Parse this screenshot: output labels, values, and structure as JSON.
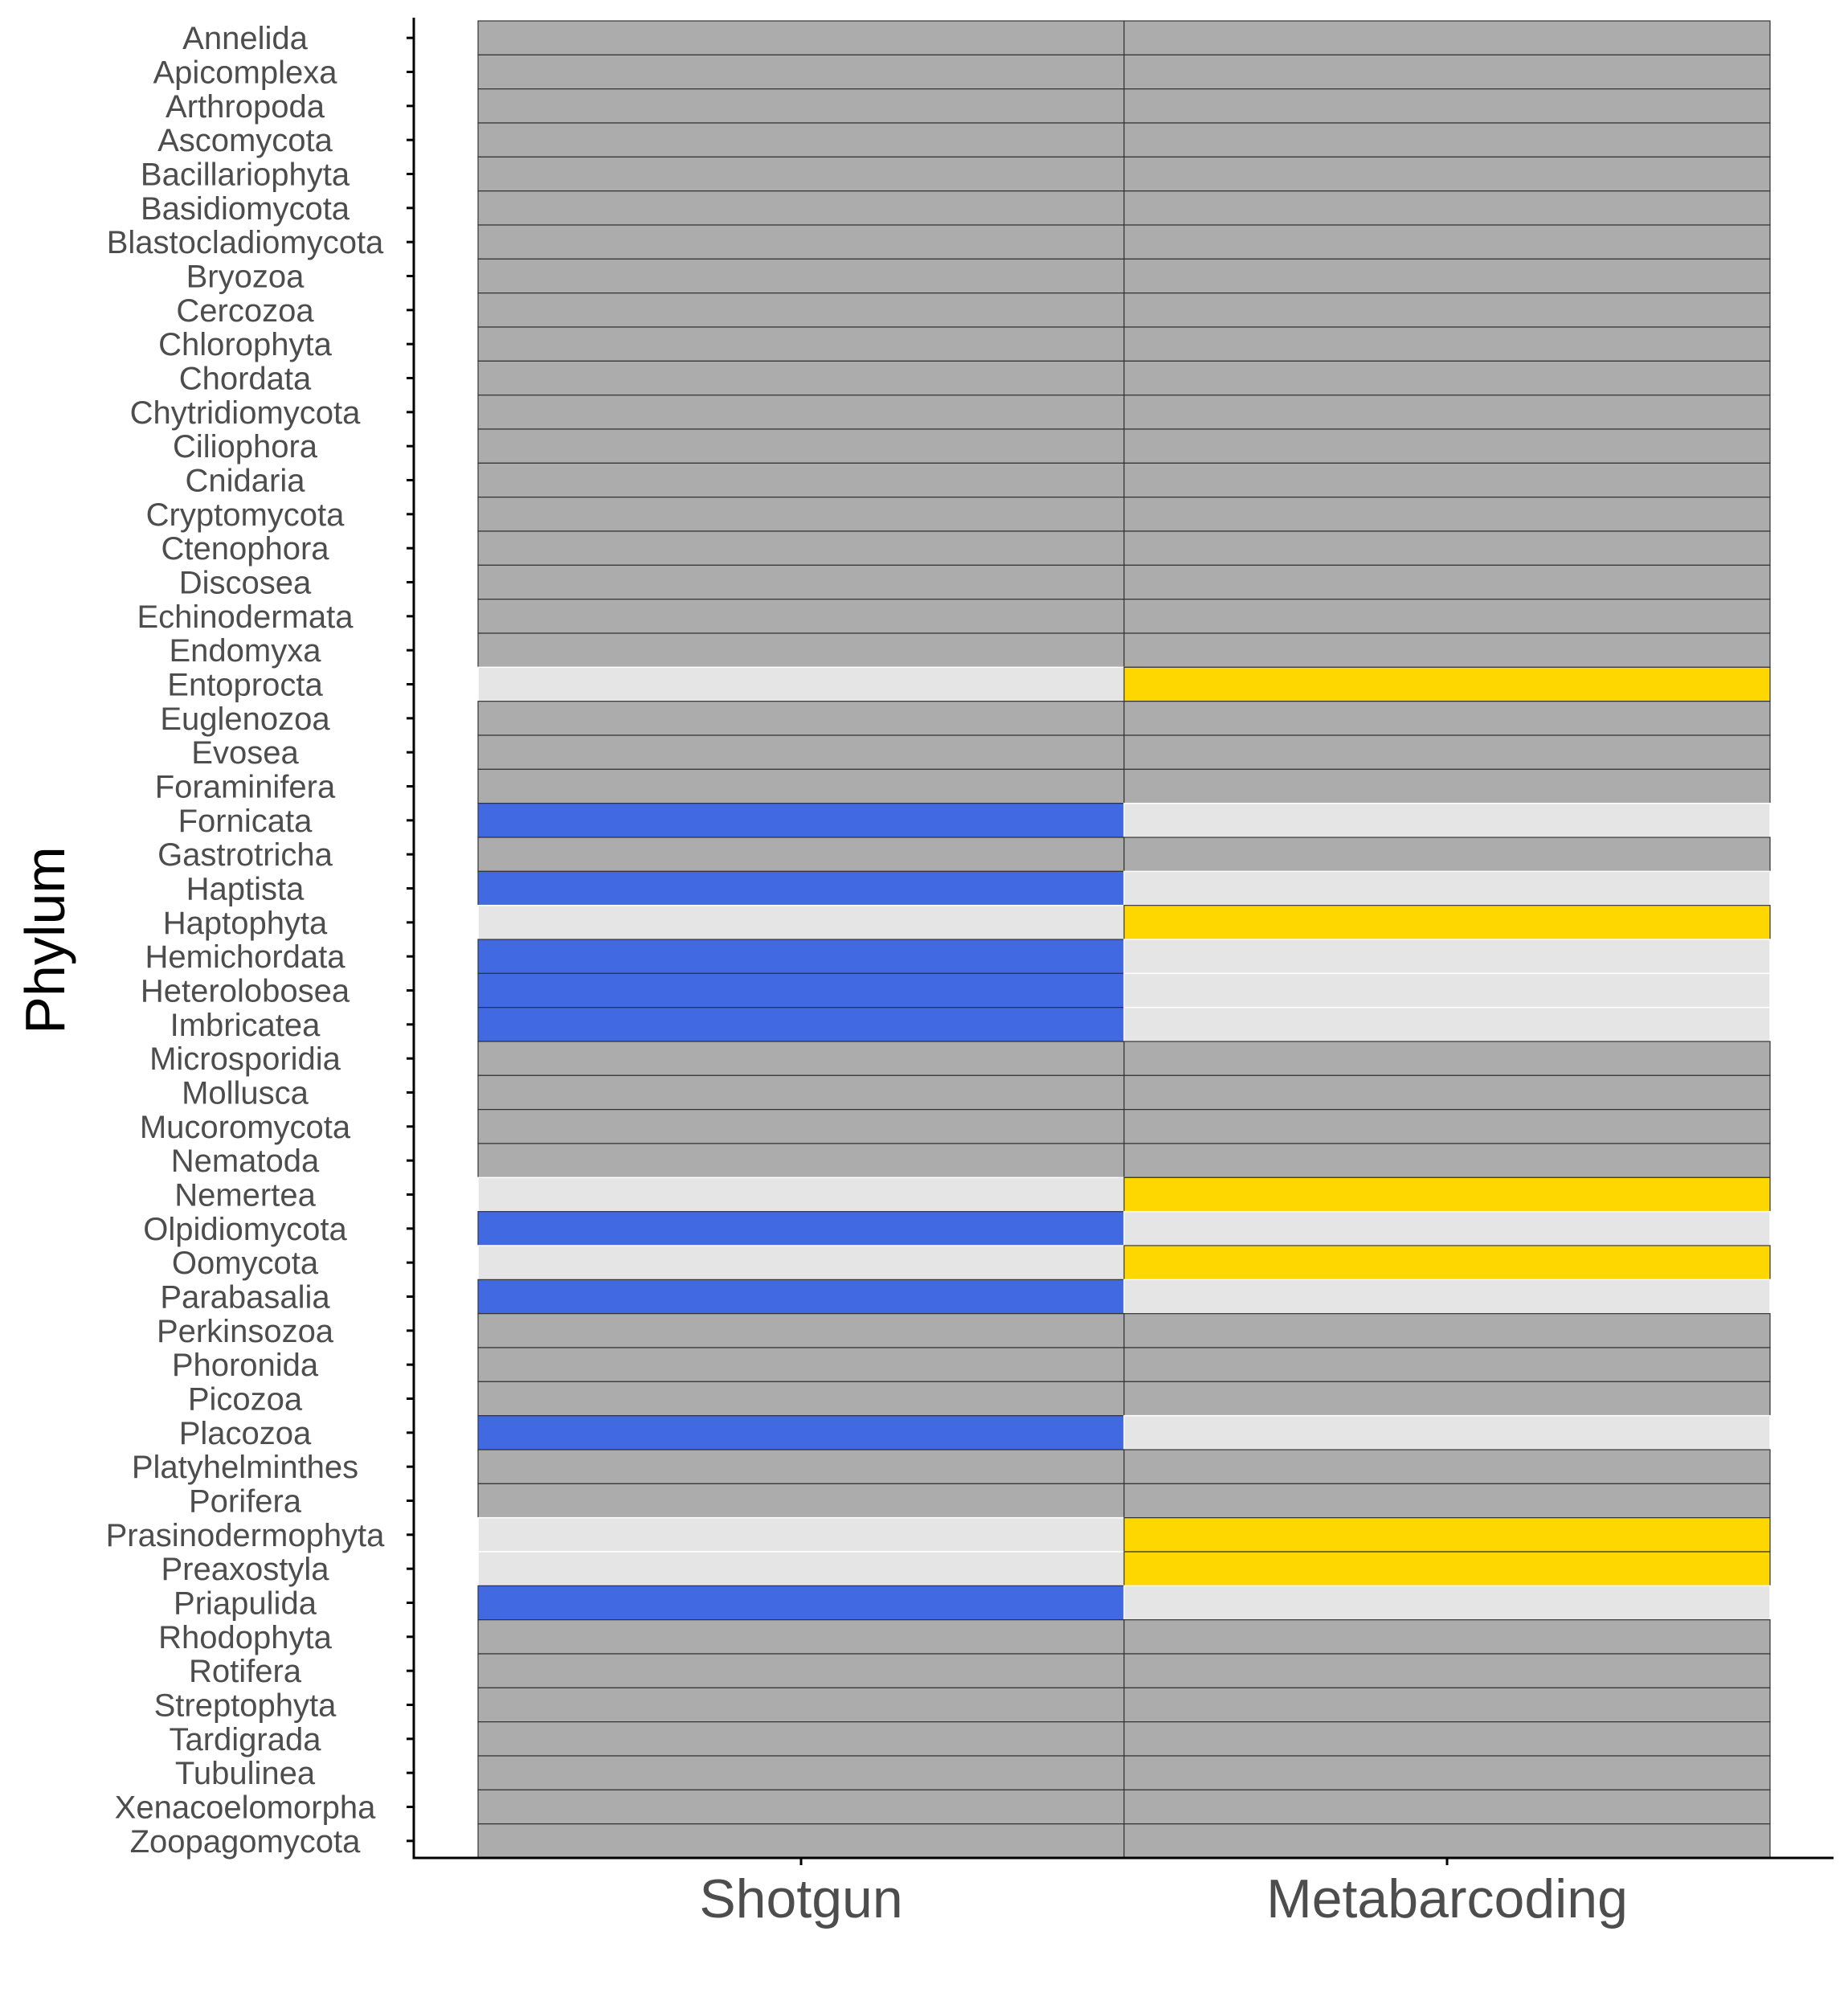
{
  "chart_data": {
    "type": "heatmap",
    "ylabel": "Phylum",
    "xlabel": "",
    "columns": [
      "Shotgun",
      "Metabarcoding"
    ],
    "rows": [
      "Annelida",
      "Apicomplexa",
      "Arthropoda",
      "Ascomycota",
      "Bacillariophyta",
      "Basidiomycota",
      "Blastocladiomycota",
      "Bryozoa",
      "Cercozoa",
      "Chlorophyta",
      "Chordata",
      "Chytridiomycota",
      "Ciliophora",
      "Cnidaria",
      "Cryptomycota",
      "Ctenophora",
      "Discosea",
      "Echinodermata",
      "Endomyxa",
      "Entoprocta",
      "Euglenozoa",
      "Evosea",
      "Foraminifera",
      "Fornicata",
      "Gastrotricha",
      "Haptista",
      "Haptophyta",
      "Hemichordata",
      "Heterolobosea",
      "Imbricatea",
      "Microsporidia",
      "Mollusca",
      "Mucoromycota",
      "Nematoda",
      "Nemertea",
      "Olpidiomycota",
      "Oomycota",
      "Parabasalia",
      "Perkinsozoa",
      "Phoronida",
      "Picozoa",
      "Placozoa",
      "Platyhelminthes",
      "Porifera",
      "Prasinodermophyta",
      "Preaxostyla",
      "Priapulida",
      "Rhodophyta",
      "Rotifera",
      "Streptophyta",
      "Tardigrada",
      "Tubulinea",
      "Xenacoelomorpha",
      "Zoopagomycota"
    ],
    "detection": [
      "both",
      "both",
      "both",
      "both",
      "both",
      "both",
      "both",
      "both",
      "both",
      "both",
      "both",
      "both",
      "both",
      "both",
      "both",
      "both",
      "both",
      "both",
      "both",
      "metabarcoding",
      "both",
      "both",
      "both",
      "shotgun",
      "both",
      "shotgun",
      "metabarcoding",
      "shotgun",
      "shotgun",
      "shotgun",
      "both",
      "both",
      "both",
      "both",
      "metabarcoding",
      "shotgun",
      "metabarcoding",
      "shotgun",
      "both",
      "both",
      "both",
      "shotgun",
      "both",
      "both",
      "metabarcoding",
      "metabarcoding",
      "shotgun",
      "both",
      "both",
      "both",
      "both",
      "both",
      "both",
      "both"
    ],
    "colors": {
      "both": "#acacac",
      "shotgun_only": "#4169e1",
      "metabarcoding_only": "#ffd700",
      "absent": "#e5e5e5",
      "border": "#333333",
      "axis": "#000000"
    },
    "grid": false,
    "legend": "none"
  }
}
